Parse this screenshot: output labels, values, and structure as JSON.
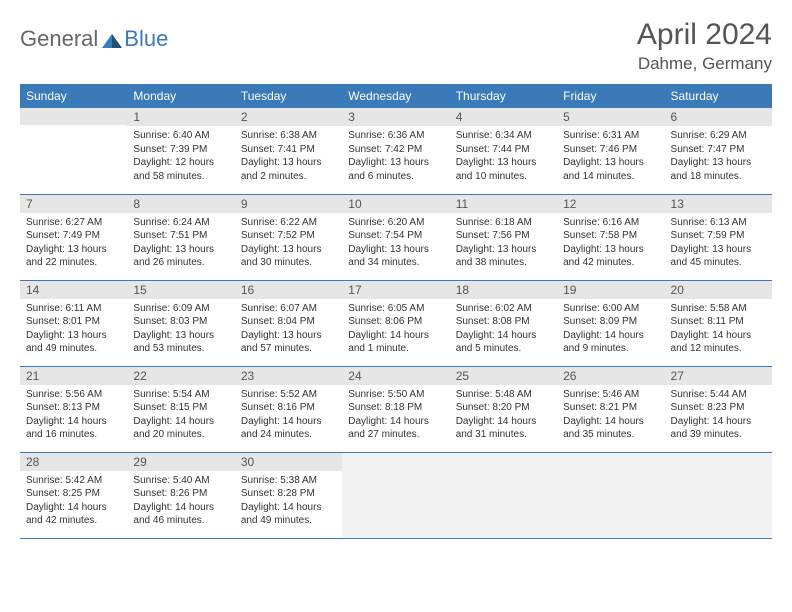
{
  "logo": {
    "text1": "General",
    "text2": "Blue"
  },
  "title": "April 2024",
  "location": "Dahme, Germany",
  "colors": {
    "header_bg": "#3a7ab8",
    "header_text": "#ffffff",
    "daynum_bg": "#e6e6e6",
    "border": "#3a7ab8",
    "body_text": "#333333",
    "logo_gray": "#666666",
    "logo_blue": "#3a7ab8",
    "trailing_bg": "#f2f2f2"
  },
  "day_headers": [
    "Sunday",
    "Monday",
    "Tuesday",
    "Wednesday",
    "Thursday",
    "Friday",
    "Saturday"
  ],
  "weeks": [
    [
      {
        "n": "",
        "sunrise": "",
        "sunset": "",
        "daylight": ""
      },
      {
        "n": "1",
        "sunrise": "6:40 AM",
        "sunset": "7:39 PM",
        "daylight": "12 hours and 58 minutes."
      },
      {
        "n": "2",
        "sunrise": "6:38 AM",
        "sunset": "7:41 PM",
        "daylight": "13 hours and 2 minutes."
      },
      {
        "n": "3",
        "sunrise": "6:36 AM",
        "sunset": "7:42 PM",
        "daylight": "13 hours and 6 minutes."
      },
      {
        "n": "4",
        "sunrise": "6:34 AM",
        "sunset": "7:44 PM",
        "daylight": "13 hours and 10 minutes."
      },
      {
        "n": "5",
        "sunrise": "6:31 AM",
        "sunset": "7:46 PM",
        "daylight": "13 hours and 14 minutes."
      },
      {
        "n": "6",
        "sunrise": "6:29 AM",
        "sunset": "7:47 PM",
        "daylight": "13 hours and 18 minutes."
      }
    ],
    [
      {
        "n": "7",
        "sunrise": "6:27 AM",
        "sunset": "7:49 PM",
        "daylight": "13 hours and 22 minutes."
      },
      {
        "n": "8",
        "sunrise": "6:24 AM",
        "sunset": "7:51 PM",
        "daylight": "13 hours and 26 minutes."
      },
      {
        "n": "9",
        "sunrise": "6:22 AM",
        "sunset": "7:52 PM",
        "daylight": "13 hours and 30 minutes."
      },
      {
        "n": "10",
        "sunrise": "6:20 AM",
        "sunset": "7:54 PM",
        "daylight": "13 hours and 34 minutes."
      },
      {
        "n": "11",
        "sunrise": "6:18 AM",
        "sunset": "7:56 PM",
        "daylight": "13 hours and 38 minutes."
      },
      {
        "n": "12",
        "sunrise": "6:16 AM",
        "sunset": "7:58 PM",
        "daylight": "13 hours and 42 minutes."
      },
      {
        "n": "13",
        "sunrise": "6:13 AM",
        "sunset": "7:59 PM",
        "daylight": "13 hours and 45 minutes."
      }
    ],
    [
      {
        "n": "14",
        "sunrise": "6:11 AM",
        "sunset": "8:01 PM",
        "daylight": "13 hours and 49 minutes."
      },
      {
        "n": "15",
        "sunrise": "6:09 AM",
        "sunset": "8:03 PM",
        "daylight": "13 hours and 53 minutes."
      },
      {
        "n": "16",
        "sunrise": "6:07 AM",
        "sunset": "8:04 PM",
        "daylight": "13 hours and 57 minutes."
      },
      {
        "n": "17",
        "sunrise": "6:05 AM",
        "sunset": "8:06 PM",
        "daylight": "14 hours and 1 minute."
      },
      {
        "n": "18",
        "sunrise": "6:02 AM",
        "sunset": "8:08 PM",
        "daylight": "14 hours and 5 minutes."
      },
      {
        "n": "19",
        "sunrise": "6:00 AM",
        "sunset": "8:09 PM",
        "daylight": "14 hours and 9 minutes."
      },
      {
        "n": "20",
        "sunrise": "5:58 AM",
        "sunset": "8:11 PM",
        "daylight": "14 hours and 12 minutes."
      }
    ],
    [
      {
        "n": "21",
        "sunrise": "5:56 AM",
        "sunset": "8:13 PM",
        "daylight": "14 hours and 16 minutes."
      },
      {
        "n": "22",
        "sunrise": "5:54 AM",
        "sunset": "8:15 PM",
        "daylight": "14 hours and 20 minutes."
      },
      {
        "n": "23",
        "sunrise": "5:52 AM",
        "sunset": "8:16 PM",
        "daylight": "14 hours and 24 minutes."
      },
      {
        "n": "24",
        "sunrise": "5:50 AM",
        "sunset": "8:18 PM",
        "daylight": "14 hours and 27 minutes."
      },
      {
        "n": "25",
        "sunrise": "5:48 AM",
        "sunset": "8:20 PM",
        "daylight": "14 hours and 31 minutes."
      },
      {
        "n": "26",
        "sunrise": "5:46 AM",
        "sunset": "8:21 PM",
        "daylight": "14 hours and 35 minutes."
      },
      {
        "n": "27",
        "sunrise": "5:44 AM",
        "sunset": "8:23 PM",
        "daylight": "14 hours and 39 minutes."
      }
    ],
    [
      {
        "n": "28",
        "sunrise": "5:42 AM",
        "sunset": "8:25 PM",
        "daylight": "14 hours and 42 minutes."
      },
      {
        "n": "29",
        "sunrise": "5:40 AM",
        "sunset": "8:26 PM",
        "daylight": "14 hours and 46 minutes."
      },
      {
        "n": "30",
        "sunrise": "5:38 AM",
        "sunset": "8:28 PM",
        "daylight": "14 hours and 49 minutes."
      },
      {
        "n": "",
        "sunrise": "",
        "sunset": "",
        "daylight": "",
        "trailing": true
      },
      {
        "n": "",
        "sunrise": "",
        "sunset": "",
        "daylight": "",
        "trailing": true
      },
      {
        "n": "",
        "sunrise": "",
        "sunset": "",
        "daylight": "",
        "trailing": true
      },
      {
        "n": "",
        "sunrise": "",
        "sunset": "",
        "daylight": "",
        "trailing": true
      }
    ]
  ],
  "labels": {
    "sunrise": "Sunrise: ",
    "sunset": "Sunset: ",
    "daylight": "Daylight: "
  }
}
